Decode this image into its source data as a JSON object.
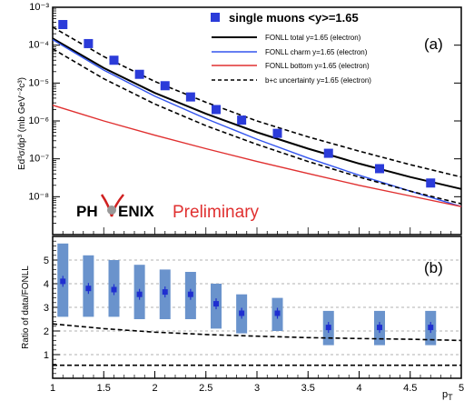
{
  "chart_data": [
    {
      "type": "scatter",
      "panel_label": "(a)",
      "ylabel": "Ed³σ/dp³ (mb GeV⁻²c³)",
      "yscale": "log",
      "ylim": [
        1e-09,
        0.001
      ],
      "xlim": [
        1,
        5
      ],
      "y_tick_labels": [
        "10⁻³",
        "10⁻⁴",
        "10⁻⁵",
        "10⁻⁶",
        "10⁻⁷",
        "10⁻⁸"
      ],
      "y_tick_values": [
        0.001,
        0.0001,
        1e-05,
        1e-06,
        1e-07,
        1e-08
      ],
      "watermark_logo": "PH",
      "watermark_logo2": "ENIX",
      "watermark_text": "Preliminary",
      "legend_position": "top-right",
      "data_series": {
        "name": "single muons <y>=1.65",
        "color": "#2b3bd9",
        "x": [
          1.1,
          1.35,
          1.6,
          1.85,
          2.1,
          2.35,
          2.6,
          2.85,
          3.2,
          3.7,
          4.2,
          4.7
        ],
        "y": [
          0.00035,
          0.00011,
          4e-05,
          1.7e-05,
          8.5e-06,
          4.3e-06,
          2e-06,
          1.05e-06,
          4.7e-07,
          1.4e-07,
          5.5e-08,
          2.3e-08
        ]
      },
      "curves": [
        {
          "name": "FONLL total y=1.65 (electron)",
          "color": "#000000",
          "style": "solid",
          "width": 2,
          "x": [
            1,
            1.5,
            2,
            2.5,
            3,
            3.5,
            4,
            4.5,
            5
          ],
          "y": [
            0.00015,
            2.5e-05,
            5.5e-06,
            1.55e-06,
            5e-07,
            1.85e-07,
            7.5e-08,
            3.3e-08,
            1.6e-08
          ]
        },
        {
          "name": "FONLL charm y=1.65 (electron)",
          "color": "#3355ee",
          "style": "solid",
          "width": 1.4,
          "x": [
            1,
            1.5,
            2,
            2.5,
            3,
            3.5,
            4,
            4.5,
            5
          ],
          "y": [
            0.00014,
            2.2e-05,
            4.5e-06,
            1.15e-06,
            3.3e-07,
            1.05e-07,
            3.7e-08,
            1.4e-08,
            5.5e-09
          ]
        },
        {
          "name": "FONLL bottom y=1.65 (electron)",
          "color": "#e03030",
          "style": "solid",
          "width": 1.4,
          "x": [
            1,
            1.5,
            2,
            2.5,
            3,
            3.5,
            4,
            4.5,
            5
          ],
          "y": [
            2.6e-06,
            1e-06,
            4.2e-07,
            1.85e-07,
            8.5e-08,
            4.1e-08,
            2e-08,
            1.05e-08,
            5.5e-09
          ]
        },
        {
          "name": "b+c uncertainty y=1.65 (electron)",
          "color": "#000000",
          "style": "dashed",
          "width": 1.6,
          "x": [
            1,
            1.5,
            2,
            2.5,
            3,
            3.5,
            4,
            4.5,
            5
          ],
          "y": [
            0.0003,
            5e-05,
            1.1e-05,
            3.1e-06,
            1e-06,
            3.8e-07,
            1.6e-07,
            7e-08,
            3.3e-08
          ]
        },
        {
          "name": "",
          "color": "#000000",
          "style": "dashed",
          "width": 1.6,
          "x": [
            1,
            1.5,
            2,
            2.5,
            3,
            3.5,
            4,
            4.5,
            5
          ],
          "y": [
            8e-05,
            1.3e-05,
            2.8e-06,
            7.5e-07,
            2.4e-07,
            8.5e-08,
            3.3e-08,
            1.4e-08,
            6.5e-09
          ]
        }
      ]
    },
    {
      "type": "scatter",
      "panel_label": "(b)",
      "ylabel": "Ratio of data/FONLL",
      "xlabel": "p",
      "xlabel_sub": "T",
      "xlim": [
        1,
        5
      ],
      "ylim": [
        0,
        6
      ],
      "x_tick_labels": [
        "1",
        "1.5",
        "2",
        "2.5",
        "3",
        "3.5",
        "4",
        "4.5",
        "5"
      ],
      "y_tick_labels": [
        "0",
        "1",
        "2",
        "3",
        "4",
        "5",
        "6"
      ],
      "grid_y": [
        1,
        2,
        3,
        4,
        5
      ],
      "ratio_points": {
        "color": "#1f2fd0",
        "x": [
          1.1,
          1.35,
          1.6,
          1.85,
          2.1,
          2.35,
          2.6,
          2.85,
          3.2,
          3.7,
          4.2,
          4.7
        ],
        "y": [
          4.1,
          3.8,
          3.75,
          3.55,
          3.65,
          3.55,
          3.15,
          2.75,
          2.75,
          2.15,
          2.15,
          2.15
        ],
        "band_low": [
          2.6,
          2.6,
          2.6,
          2.5,
          2.5,
          2.5,
          2.1,
          1.9,
          2.0,
          1.4,
          1.4,
          1.4
        ],
        "band_high": [
          5.7,
          5.2,
          5.0,
          4.8,
          4.6,
          4.5,
          4.0,
          3.55,
          3.4,
          2.85,
          2.85,
          2.85
        ],
        "band_color": "#6a93cc"
      },
      "dashed_upper": {
        "x": [
          1,
          1.5,
          2,
          2.5,
          3,
          3.5,
          4,
          4.5,
          5
        ],
        "y": [
          2.3,
          2.1,
          1.95,
          1.85,
          1.78,
          1.72,
          1.68,
          1.65,
          1.6
        ]
      },
      "dashed_lower": {
        "x": [
          1,
          1.5,
          2,
          2.5,
          3,
          3.5,
          4,
          4.5,
          5
        ],
        "y": [
          0.55,
          0.55,
          0.55,
          0.55,
          0.55,
          0.55,
          0.55,
          0.55,
          0.55
        ]
      }
    }
  ]
}
